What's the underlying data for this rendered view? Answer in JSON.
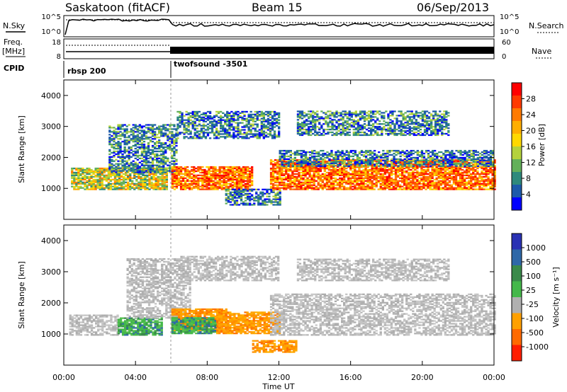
{
  "header": {
    "station": "Saskatoon (fitACF)",
    "beam": "Beam 15",
    "date": "06/Sep/2013"
  },
  "side_labels": {
    "nsky": "N.Sky",
    "nsearch": "N.Search",
    "freq": "Freq.",
    "freq_unit": "[MHz]",
    "nave": "Nave",
    "cpid": "CPID"
  },
  "noise_axis": {
    "left_ticks": [
      "10^5",
      "10^0"
    ],
    "right_ticks": [
      "10^5",
      "10^0"
    ]
  },
  "freq_axis": {
    "left_ticks": [
      "18",
      "8"
    ],
    "right_ticks": [
      "60",
      "0"
    ]
  },
  "cpid_segments": [
    {
      "label": "rbsp 200",
      "start_h": 0
    },
    {
      "label": "twofsound -3501",
      "start_h": 6
    }
  ],
  "power_colorbar": {
    "label": "Power [dB]",
    "ticks": [
      "28",
      "24",
      "20",
      "16",
      "12",
      "8",
      "4"
    ],
    "colors": [
      "#ff0000",
      "#ff3a00",
      "#ff7a00",
      "#ffae00",
      "#ffd800",
      "#b4d23c",
      "#63b05a",
      "#2e8a7c",
      "#1c5aaa",
      "#0000ff"
    ]
  },
  "velocity_colorbar": {
    "label": "Velocity [m s⁻¹]",
    "ticks": [
      "1000",
      "500",
      "100",
      "25",
      "-25",
      "-100",
      "-500",
      "-1000"
    ],
    "colors": [
      "#2a32b4",
      "#2f68a8",
      "#3a8a4a",
      "#44b84a",
      "#b0b0b0",
      "#ffa000",
      "#ff6a00",
      "#ff1e00"
    ]
  },
  "chart_data": [
    {
      "type": "heatmap",
      "title": "",
      "xlabel": "Time UT",
      "ylabel": "Slant Range [km]",
      "xlim": [
        0,
        24
      ],
      "ylim": [
        0,
        4500
      ],
      "x_ticks": [
        "00:00",
        "04:00",
        "08:00",
        "12:00",
        "16:00",
        "20:00",
        "00:00"
      ],
      "y_ticks": [
        "1000",
        "2000",
        "3000",
        "4000"
      ],
      "value": "Power [dB]",
      "regions": [
        {
          "t0": 0.4,
          "t1": 5.8,
          "r0": 950,
          "r1": 1650,
          "level": "medium"
        },
        {
          "t0": 2.5,
          "t1": 6.3,
          "r0": 1500,
          "r1": 3050,
          "level": "weak"
        },
        {
          "t0": 6.0,
          "t1": 10.5,
          "r0": 950,
          "r1": 1700,
          "level": "strong"
        },
        {
          "t0": 6.3,
          "t1": 12.0,
          "r0": 2600,
          "r1": 3500,
          "level": "weak"
        },
        {
          "t0": 9.0,
          "t1": 12.0,
          "r0": 450,
          "r1": 950,
          "level": "weak"
        },
        {
          "t0": 11.5,
          "t1": 24,
          "r0": 950,
          "r1": 1900,
          "level": "strong"
        },
        {
          "t0": 12.0,
          "t1": 24,
          "r0": 1700,
          "r1": 2200,
          "level": "weak"
        },
        {
          "t0": 13.0,
          "t1": 21.5,
          "r0": 2700,
          "r1": 3500,
          "level": "weak"
        }
      ]
    },
    {
      "type": "heatmap",
      "title": "",
      "xlabel": "Time UT",
      "ylabel": "Slant Range [km]",
      "xlim": [
        0,
        24
      ],
      "ylim": [
        0,
        4500
      ],
      "x_ticks": [
        "00:00",
        "04:00",
        "08:00",
        "12:00",
        "16:00",
        "20:00",
        "00:00"
      ],
      "y_ticks": [
        "1000",
        "2000",
        "3000",
        "4000"
      ],
      "value": "Velocity [m s-1]",
      "regions": [
        {
          "t0": 0.3,
          "t1": 3.0,
          "r0": 950,
          "r1": 1600,
          "level": "grey"
        },
        {
          "t0": 3.0,
          "t1": 5.5,
          "r0": 950,
          "r1": 1500,
          "level": "green"
        },
        {
          "t0": 3.5,
          "t1": 7.0,
          "r0": 1500,
          "r1": 3400,
          "level": "grey"
        },
        {
          "t0": 6.0,
          "t1": 9.0,
          "r0": 1100,
          "r1": 1800,
          "level": "orange"
        },
        {
          "t0": 6.0,
          "t1": 8.5,
          "r0": 1000,
          "r1": 1500,
          "level": "green"
        },
        {
          "t0": 8.5,
          "t1": 12.0,
          "r0": 1000,
          "r1": 1700,
          "level": "orange"
        },
        {
          "t0": 6.5,
          "t1": 12.0,
          "r0": 2700,
          "r1": 3500,
          "level": "grey"
        },
        {
          "t0": 11.5,
          "t1": 24,
          "r0": 950,
          "r1": 2300,
          "level": "grey"
        },
        {
          "t0": 13.0,
          "t1": 21.5,
          "r0": 2700,
          "r1": 3400,
          "level": "grey"
        },
        {
          "t0": 10.5,
          "t1": 13.0,
          "r0": 400,
          "r1": 800,
          "level": "orange"
        }
      ]
    }
  ]
}
